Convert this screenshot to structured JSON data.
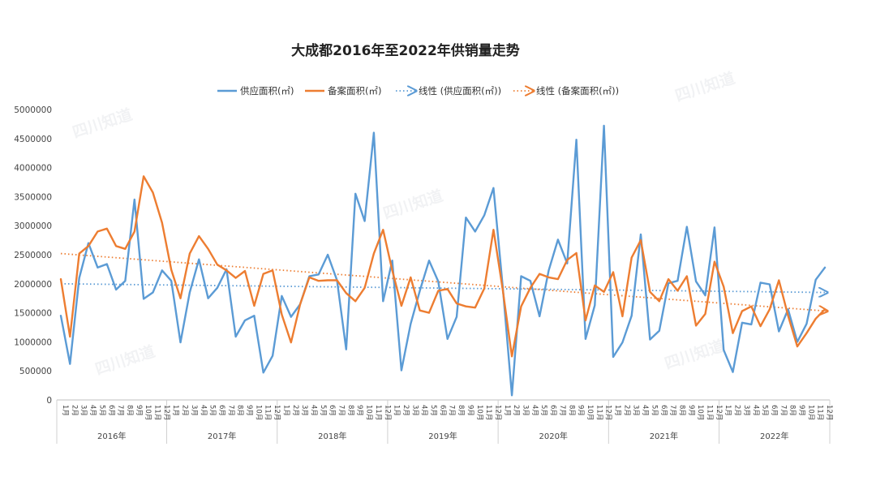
{
  "chart_data": {
    "type": "line",
    "title": "大成都2016年至2022年供销量走势",
    "ylim": [
      0,
      5000000
    ],
    "yticks": [
      "0",
      "500000",
      "1000000",
      "1500000",
      "2000000",
      "2500000",
      "3000000",
      "3500000",
      "4000000",
      "4500000",
      "5000000"
    ],
    "years": [
      "2016年",
      "2017年",
      "2018年",
      "2019年",
      "2020年",
      "2021年",
      "2022年"
    ],
    "months": [
      "1月",
      "2月",
      "3月",
      "4月",
      "5月",
      "6月",
      "7月",
      "8月",
      "9月",
      "10月",
      "11月",
      "12月"
    ],
    "grid": false,
    "legend_position": "top",
    "series": [
      {
        "name": "供应面积(㎡)",
        "color": "#5b9bd5",
        "style": "solid",
        "values": [
          1450000,
          620000,
          2100000,
          2700000,
          2280000,
          2340000,
          1900000,
          2050000,
          3450000,
          1740000,
          1850000,
          2230000,
          2050000,
          990000,
          1850000,
          2420000,
          1750000,
          1930000,
          2250000,
          1090000,
          1370000,
          1450000,
          470000,
          760000,
          1790000,
          1430000,
          1650000,
          2130000,
          2160000,
          2500000,
          2060000,
          870000,
          3550000,
          3080000,
          4600000,
          1700000,
          2400000,
          510000,
          1310000,
          1880000,
          2400000,
          2040000,
          1050000,
          1430000,
          3140000,
          2900000,
          3180000,
          3650000,
          1950000,
          80000,
          2130000,
          2050000,
          1440000,
          2230000,
          2760000,
          2350000,
          4480000,
          1050000,
          1630000,
          4720000,
          740000,
          990000,
          1450000,
          2850000,
          1040000,
          1190000,
          2010000,
          2050000,
          2980000,
          2040000,
          1800000,
          2970000,
          860000,
          480000,
          1330000,
          1300000,
          2020000,
          1990000,
          1180000,
          1560000,
          1000000,
          1310000,
          2070000,
          2280000
        ]
      },
      {
        "name": "备案面积(㎡)",
        "color": "#ed7d31",
        "style": "solid",
        "values": [
          2080000,
          1090000,
          2520000,
          2650000,
          2900000,
          2950000,
          2650000,
          2600000,
          2900000,
          3850000,
          3570000,
          3050000,
          2240000,
          1750000,
          2520000,
          2820000,
          2600000,
          2330000,
          2230000,
          2100000,
          2220000,
          1620000,
          2170000,
          2230000,
          1470000,
          990000,
          1650000,
          2110000,
          2050000,
          2060000,
          2060000,
          1840000,
          1700000,
          1930000,
          2520000,
          2930000,
          2230000,
          1620000,
          2110000,
          1540000,
          1500000,
          1880000,
          1910000,
          1660000,
          1610000,
          1590000,
          1920000,
          2930000,
          1900000,
          750000,
          1610000,
          1930000,
          2170000,
          2110000,
          2080000,
          2410000,
          2530000,
          1370000,
          1970000,
          1860000,
          2200000,
          1440000,
          2450000,
          2750000,
          1860000,
          1700000,
          2080000,
          1880000,
          2130000,
          1280000,
          1480000,
          2380000,
          1950000,
          1150000,
          1530000,
          1610000,
          1270000,
          1560000,
          2060000,
          1450000,
          920000,
          1150000,
          1400000,
          1560000
        ]
      },
      {
        "name": "线性 (供应面积(㎡))",
        "color": "#5b9bd5",
        "style": "dotted",
        "trend": [
          2000000,
          1850000
        ]
      },
      {
        "name": "线性 (备案面积(㎡))",
        "color": "#ed7d31",
        "style": "dotted",
        "trend": [
          2520000,
          1530000
        ]
      }
    ],
    "watermark": "四川知道"
  }
}
